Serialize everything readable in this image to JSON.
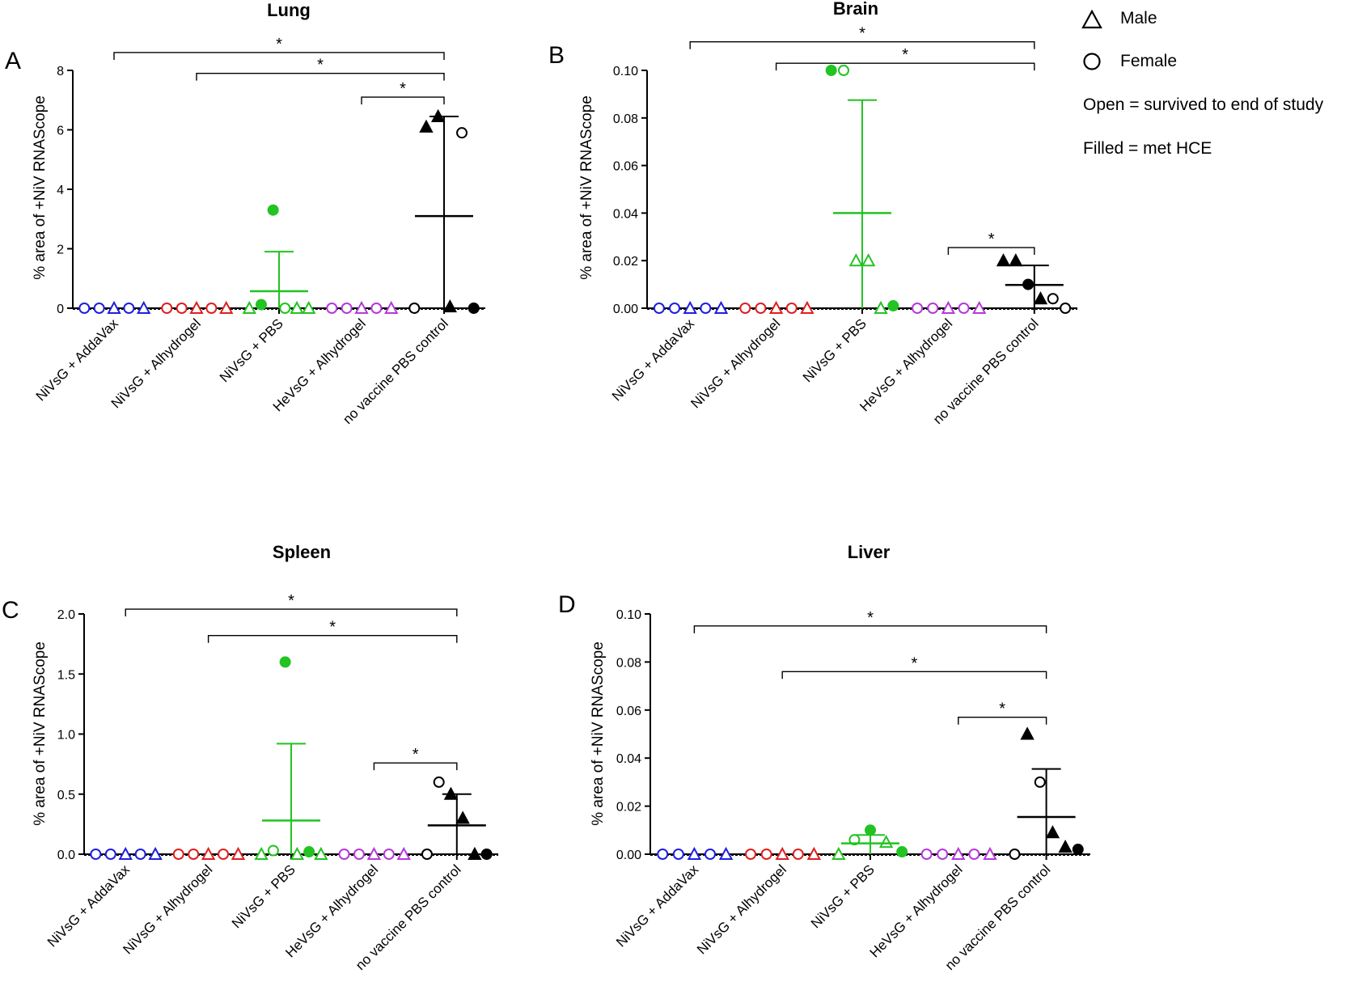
{
  "legend": {
    "male": "Male",
    "female": "Female",
    "open_note": "Open = survived to end of study",
    "filled_note": "Filled = met HCE"
  },
  "colors": {
    "NiVsG + AddaVax": "#1f1fe0",
    "NiVsG + Alhydrogel": "#e01f1f",
    "NiVsG + PBS": "#22c322",
    "HeVsG + Alhydrogel": "#b53ad8",
    "no vaccine PBS control": "#000000"
  },
  "chart_data": [
    {
      "panel": "A",
      "title": "Lung",
      "type": "scatter",
      "ylabel": "% area of +NiV RNAScope",
      "ylim": [
        0,
        8
      ],
      "yticks": [
        0,
        2,
        4,
        6,
        8
      ],
      "tick_format": "int",
      "categories": [
        "NiVsG + AddaVax",
        "NiVsG + Alhydrogel",
        "NiVsG + PBS",
        "HeVsG + Alhydrogel",
        "no vaccine PBS control"
      ],
      "series": [
        {
          "name": "NiVsG + AddaVax",
          "mean": null,
          "sd_upper": null,
          "points": [
            {
              "y": 0,
              "shape": "circle",
              "filled": false
            },
            {
              "y": 0,
              "shape": "circle",
              "filled": false
            },
            {
              "y": 0,
              "shape": "triangle",
              "filled": false
            },
            {
              "y": 0,
              "shape": "circle",
              "filled": false
            },
            {
              "y": 0,
              "shape": "triangle",
              "filled": false
            }
          ]
        },
        {
          "name": "NiVsG + Alhydrogel",
          "mean": null,
          "sd_upper": null,
          "points": [
            {
              "y": 0,
              "shape": "circle",
              "filled": false
            },
            {
              "y": 0,
              "shape": "circle",
              "filled": false
            },
            {
              "y": 0,
              "shape": "triangle",
              "filled": false
            },
            {
              "y": 0,
              "shape": "circle",
              "filled": false
            },
            {
              "y": 0,
              "shape": "triangle",
              "filled": false
            }
          ]
        },
        {
          "name": "NiVsG + PBS",
          "mean": 0.57,
          "sd_upper": 1.9,
          "points": [
            {
              "y": 0,
              "shape": "triangle",
              "filled": false
            },
            {
              "y": 0.12,
              "shape": "circle",
              "filled": true
            },
            {
              "y": 3.3,
              "shape": "circle",
              "filled": true
            },
            {
              "y": 0,
              "shape": "circle",
              "filled": false
            },
            {
              "y": 0,
              "shape": "triangle",
              "filled": false
            },
            {
              "y": 0,
              "shape": "triangle",
              "filled": false
            }
          ]
        },
        {
          "name": "HeVsG + Alhydrogel",
          "mean": null,
          "sd_upper": null,
          "points": [
            {
              "y": 0,
              "shape": "circle",
              "filled": false
            },
            {
              "y": 0,
              "shape": "circle",
              "filled": false
            },
            {
              "y": 0,
              "shape": "triangle",
              "filled": false
            },
            {
              "y": 0,
              "shape": "circle",
              "filled": false
            },
            {
              "y": 0,
              "shape": "triangle",
              "filled": false
            }
          ]
        },
        {
          "name": "no vaccine PBS control",
          "mean": 3.1,
          "sd_upper": 6.45,
          "points": [
            {
              "y": 0,
              "shape": "circle",
              "filled": false
            },
            {
              "y": 6.1,
              "shape": "triangle",
              "filled": true
            },
            {
              "y": 6.45,
              "shape": "triangle",
              "filled": true
            },
            {
              "y": 0.05,
              "shape": "triangle",
              "filled": true
            },
            {
              "y": 5.9,
              "shape": "circle",
              "filled": false
            },
            {
              "y": 0,
              "shape": "circle",
              "filled": true
            }
          ]
        }
      ],
      "significance": [
        {
          "from": "NiVsG + AddaVax",
          "to": "no vaccine PBS control",
          "label": "*",
          "y": 8.6
        },
        {
          "from": "NiVsG + Alhydrogel",
          "to": "no vaccine PBS control",
          "label": "*",
          "y": 7.9
        },
        {
          "from": "HeVsG + Alhydrogel",
          "to": "no vaccine PBS control",
          "label": "*",
          "y": 7.1
        }
      ]
    },
    {
      "panel": "B",
      "title": "Brain",
      "type": "scatter",
      "ylabel": "% area of +NiV RNAScope",
      "ylim": [
        0,
        0.1
      ],
      "yticks": [
        0,
        0.02,
        0.04,
        0.06,
        0.08,
        0.1
      ],
      "tick_format": "2dp",
      "categories": [
        "NiVsG + AddaVax",
        "NiVsG + Alhydrogel",
        "NiVsG + PBS",
        "HeVsG + Alhydrogel",
        "no vaccine PBS control"
      ],
      "series": [
        {
          "name": "NiVsG + AddaVax",
          "mean": null,
          "sd_upper": null,
          "points": [
            {
              "y": 0,
              "shape": "circle",
              "filled": false
            },
            {
              "y": 0,
              "shape": "circle",
              "filled": false
            },
            {
              "y": 0,
              "shape": "triangle",
              "filled": false
            },
            {
              "y": 0,
              "shape": "circle",
              "filled": false
            },
            {
              "y": 0,
              "shape": "triangle",
              "filled": false
            }
          ]
        },
        {
          "name": "NiVsG + Alhydrogel",
          "mean": null,
          "sd_upper": null,
          "points": [
            {
              "y": 0,
              "shape": "circle",
              "filled": false
            },
            {
              "y": 0,
              "shape": "circle",
              "filled": false
            },
            {
              "y": 0,
              "shape": "triangle",
              "filled": false
            },
            {
              "y": 0,
              "shape": "circle",
              "filled": false
            },
            {
              "y": 0,
              "shape": "triangle",
              "filled": false
            }
          ]
        },
        {
          "name": "NiVsG + PBS",
          "mean": 0.04,
          "sd_upper": 0.0875,
          "points": [
            {
              "y": 0.1,
              "shape": "circle",
              "filled": true
            },
            {
              "y": 0.1,
              "shape": "circle",
              "filled": false
            },
            {
              "y": 0.02,
              "shape": "triangle",
              "filled": false
            },
            {
              "y": 0.02,
              "shape": "triangle",
              "filled": false
            },
            {
              "y": 0,
              "shape": "triangle",
              "filled": false
            },
            {
              "y": 0.001,
              "shape": "circle",
              "filled": true
            }
          ]
        },
        {
          "name": "HeVsG + Alhydrogel",
          "mean": null,
          "sd_upper": null,
          "points": [
            {
              "y": 0,
              "shape": "circle",
              "filled": false
            },
            {
              "y": 0,
              "shape": "circle",
              "filled": false
            },
            {
              "y": 0,
              "shape": "triangle",
              "filled": false
            },
            {
              "y": 0,
              "shape": "circle",
              "filled": false
            },
            {
              "y": 0,
              "shape": "triangle",
              "filled": false
            }
          ]
        },
        {
          "name": "no vaccine PBS control",
          "mean": 0.0098,
          "sd_upper": 0.018,
          "points": [
            {
              "y": 0.02,
              "shape": "triangle",
              "filled": true
            },
            {
              "y": 0.02,
              "shape": "triangle",
              "filled": true
            },
            {
              "y": 0.01,
              "shape": "circle",
              "filled": true
            },
            {
              "y": 0.004,
              "shape": "triangle",
              "filled": true
            },
            {
              "y": 0.004,
              "shape": "circle",
              "filled": false
            },
            {
              "y": 0,
              "shape": "circle",
              "filled": false
            }
          ]
        }
      ],
      "significance": [
        {
          "from": "NiVsG + AddaVax",
          "to": "no vaccine PBS control",
          "label": "*",
          "y": 0.112
        },
        {
          "from": "NiVsG + Alhydrogel",
          "to": "no vaccine PBS control",
          "label": "*",
          "y": 0.103
        },
        {
          "from": "HeVsG + Alhydrogel",
          "to": "no vaccine PBS control",
          "label": "*",
          "y": 0.0255
        }
      ]
    },
    {
      "panel": "C",
      "title": "Spleen",
      "type": "scatter",
      "ylabel": "% area of +NiV RNAScope",
      "ylim": [
        0,
        2
      ],
      "yticks": [
        0,
        0.5,
        1,
        1.5,
        2
      ],
      "tick_format": "1dp",
      "categories": [
        "NiVsG + AddaVax",
        "NiVsG + Alhydrogel",
        "NiVsG + PBS",
        "HeVsG + Alhydrogel",
        "no vaccine PBS control"
      ],
      "series": [
        {
          "name": "NiVsG + AddaVax",
          "mean": null,
          "sd_upper": null,
          "points": [
            {
              "y": 0,
              "shape": "circle",
              "filled": false
            },
            {
              "y": 0,
              "shape": "circle",
              "filled": false
            },
            {
              "y": 0,
              "shape": "triangle",
              "filled": false
            },
            {
              "y": 0,
              "shape": "circle",
              "filled": false
            },
            {
              "y": 0,
              "shape": "triangle",
              "filled": false
            }
          ]
        },
        {
          "name": "NiVsG + Alhydrogel",
          "mean": null,
          "sd_upper": null,
          "points": [
            {
              "y": 0,
              "shape": "circle",
              "filled": false
            },
            {
              "y": 0,
              "shape": "circle",
              "filled": false
            },
            {
              "y": 0,
              "shape": "triangle",
              "filled": false
            },
            {
              "y": 0,
              "shape": "circle",
              "filled": false
            },
            {
              "y": 0,
              "shape": "triangle",
              "filled": false
            }
          ]
        },
        {
          "name": "NiVsG + PBS",
          "mean": 0.28,
          "sd_upper": 0.92,
          "points": [
            {
              "y": 0,
              "shape": "triangle",
              "filled": false
            },
            {
              "y": 0.03,
              "shape": "circle",
              "filled": false
            },
            {
              "y": 1.6,
              "shape": "circle",
              "filled": true
            },
            {
              "y": 0,
              "shape": "triangle",
              "filled": false
            },
            {
              "y": 0.02,
              "shape": "circle",
              "filled": true
            },
            {
              "y": 0,
              "shape": "triangle",
              "filled": false
            }
          ]
        },
        {
          "name": "HeVsG + Alhydrogel",
          "mean": null,
          "sd_upper": null,
          "points": [
            {
              "y": 0,
              "shape": "circle",
              "filled": false
            },
            {
              "y": 0,
              "shape": "circle",
              "filled": false
            },
            {
              "y": 0,
              "shape": "triangle",
              "filled": false
            },
            {
              "y": 0,
              "shape": "circle",
              "filled": false
            },
            {
              "y": 0,
              "shape": "triangle",
              "filled": false
            }
          ]
        },
        {
          "name": "no vaccine PBS control",
          "mean": 0.24,
          "sd_upper": 0.5,
          "points": [
            {
              "y": 0,
              "shape": "circle",
              "filled": false
            },
            {
              "y": 0.6,
              "shape": "circle",
              "filled": false
            },
            {
              "y": 0.5,
              "shape": "triangle",
              "filled": true
            },
            {
              "y": 0.3,
              "shape": "triangle",
              "filled": true
            },
            {
              "y": 0,
              "shape": "triangle",
              "filled": true
            },
            {
              "y": 0,
              "shape": "circle",
              "filled": true
            }
          ]
        }
      ],
      "significance": [
        {
          "from": "NiVsG + AddaVax",
          "to": "no vaccine PBS control",
          "label": "*",
          "y": 2.04
        },
        {
          "from": "NiVsG + Alhydrogel",
          "to": "no vaccine PBS control",
          "label": "*",
          "y": 1.82
        },
        {
          "from": "HeVsG + Alhydrogel",
          "to": "no vaccine PBS control",
          "label": "*",
          "y": 0.76
        }
      ]
    },
    {
      "panel": "D",
      "title": "Liver",
      "type": "scatter",
      "ylabel": "% area of +NiV RNAScope",
      "ylim": [
        0,
        0.1
      ],
      "yticks": [
        0,
        0.02,
        0.04,
        0.06,
        0.08,
        0.1
      ],
      "tick_format": "2dp",
      "categories": [
        "NiVsG + AddaVax",
        "NiVsG + Alhydrogel",
        "NiVsG + PBS",
        "HeVsG + Alhydrogel",
        "no vaccine PBS control"
      ],
      "series": [
        {
          "name": "NiVsG + AddaVax",
          "mean": null,
          "sd_upper": null,
          "points": [
            {
              "y": 0,
              "shape": "circle",
              "filled": false
            },
            {
              "y": 0,
              "shape": "circle",
              "filled": false
            },
            {
              "y": 0,
              "shape": "triangle",
              "filled": false
            },
            {
              "y": 0,
              "shape": "circle",
              "filled": false
            },
            {
              "y": 0,
              "shape": "triangle",
              "filled": false
            }
          ]
        },
        {
          "name": "NiVsG + Alhydrogel",
          "mean": null,
          "sd_upper": null,
          "points": [
            {
              "y": 0,
              "shape": "circle",
              "filled": false
            },
            {
              "y": 0,
              "shape": "circle",
              "filled": false
            },
            {
              "y": 0,
              "shape": "triangle",
              "filled": false
            },
            {
              "y": 0,
              "shape": "circle",
              "filled": false
            },
            {
              "y": 0,
              "shape": "triangle",
              "filled": false
            }
          ]
        },
        {
          "name": "NiVsG + PBS",
          "mean": 0.0045,
          "sd_upper": 0.008,
          "points": [
            {
              "y": 0,
              "shape": "triangle",
              "filled": false
            },
            {
              "y": 0.006,
              "shape": "circle",
              "filled": false
            },
            {
              "y": 0.01,
              "shape": "circle",
              "filled": true
            },
            {
              "y": 0.005,
              "shape": "triangle",
              "filled": false
            },
            {
              "y": 0.001,
              "shape": "circle",
              "filled": true
            }
          ]
        },
        {
          "name": "HeVsG + Alhydrogel",
          "mean": null,
          "sd_upper": null,
          "points": [
            {
              "y": 0,
              "shape": "circle",
              "filled": false
            },
            {
              "y": 0,
              "shape": "circle",
              "filled": false
            },
            {
              "y": 0,
              "shape": "triangle",
              "filled": false
            },
            {
              "y": 0,
              "shape": "circle",
              "filled": false
            },
            {
              "y": 0,
              "shape": "triangle",
              "filled": false
            }
          ]
        },
        {
          "name": "no vaccine PBS control",
          "mean": 0.0155,
          "sd_upper": 0.0355,
          "points": [
            {
              "y": 0,
              "shape": "circle",
              "filled": false
            },
            {
              "y": 0.05,
              "shape": "triangle",
              "filled": true
            },
            {
              "y": 0.03,
              "shape": "circle",
              "filled": false
            },
            {
              "y": 0.009,
              "shape": "triangle",
              "filled": true
            },
            {
              "y": 0.003,
              "shape": "triangle",
              "filled": true
            },
            {
              "y": 0.002,
              "shape": "circle",
              "filled": true
            }
          ]
        }
      ],
      "significance": [
        {
          "from": "NiVsG + AddaVax",
          "to": "no vaccine PBS control",
          "label": "*",
          "y": 0.095
        },
        {
          "from": "NiVsG + Alhydrogel",
          "to": "no vaccine PBS control",
          "label": "*",
          "y": 0.076
        },
        {
          "from": "HeVsG + Alhydrogel",
          "to": "no vaccine PBS control",
          "label": "*",
          "y": 0.057
        }
      ]
    }
  ]
}
